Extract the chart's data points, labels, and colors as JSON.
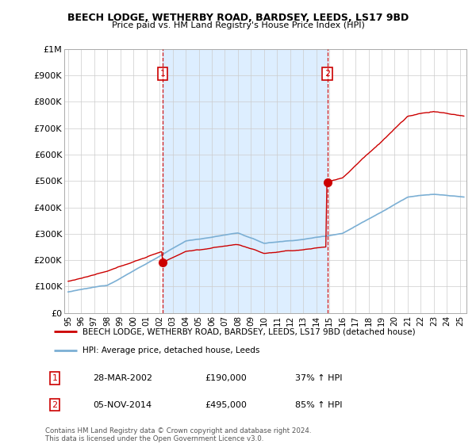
{
  "title": "BEECH LODGE, WETHERBY ROAD, BARDSEY, LEEDS, LS17 9BD",
  "subtitle": "Price paid vs. HM Land Registry's House Price Index (HPI)",
  "legend_line1": "BEECH LODGE, WETHERBY ROAD, BARDSEY, LEEDS, LS17 9BD (detached house)",
  "legend_line2": "HPI: Average price, detached house, Leeds",
  "sale1_date": "28-MAR-2002",
  "sale1_price": 190000,
  "sale1_label": "37% ↑ HPI",
  "sale2_date": "05-NOV-2014",
  "sale2_price": 495000,
  "sale2_label": "85% ↑ HPI",
  "footer1": "Contains HM Land Registry data © Crown copyright and database right 2024.",
  "footer2": "This data is licensed under the Open Government Licence v3.0.",
  "hpi_color": "#7bafd4",
  "sale_color": "#cc0000",
  "vline_color": "#cc0000",
  "shade_color": "#ddeeff",
  "ylim": [
    0,
    1000000
  ],
  "yticks": [
    0,
    100000,
    200000,
    300000,
    400000,
    500000,
    600000,
    700000,
    800000,
    900000,
    1000000
  ],
  "ytick_labels": [
    "£0",
    "£100K",
    "£200K",
    "£300K",
    "£400K",
    "£500K",
    "£600K",
    "£700K",
    "£800K",
    "£900K",
    "£1M"
  ],
  "xlim_start": 1994.7,
  "xlim_end": 2025.5,
  "sale1_x": 2002.23,
  "sale2_x": 2014.85
}
